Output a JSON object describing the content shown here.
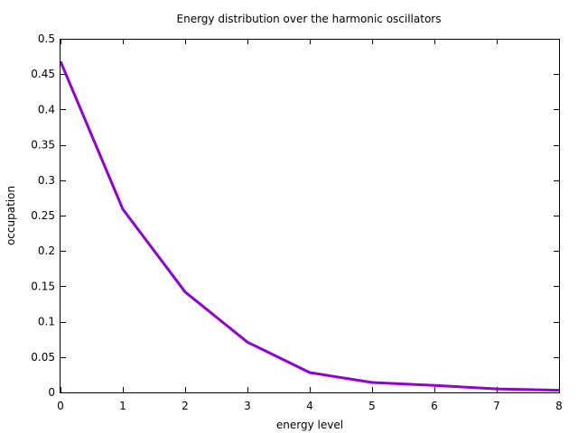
{
  "chart_data": {
    "type": "line",
    "title": "Energy distribution over the harmonic oscillators",
    "xlabel": "energy level",
    "ylabel": "occupation",
    "xlim": [
      0,
      8
    ],
    "ylim": [
      0,
      0.5
    ],
    "x_ticks": [
      0,
      1,
      2,
      3,
      4,
      5,
      6,
      7,
      8
    ],
    "x_tick_labels": [
      "0",
      "1",
      "2",
      "3",
      "4",
      "5",
      "6",
      "7",
      "8"
    ],
    "y_ticks": [
      0,
      0.05,
      0.1,
      0.15,
      0.2,
      0.25,
      0.3,
      0.35,
      0.4,
      0.45,
      0.5
    ],
    "y_tick_labels": [
      "0",
      "0.05",
      "0.1",
      "0.15",
      "0.2",
      "0.25",
      "0.3",
      "0.35",
      "0.4",
      "0.45",
      "0.5"
    ],
    "grid": false,
    "legend": "none",
    "series": [
      {
        "color": "#9400d3",
        "x": [
          0,
          1,
          2,
          3,
          4,
          5,
          6,
          7,
          8
        ],
        "y": [
          0.468,
          0.259,
          0.142,
          0.071,
          0.028,
          0.014,
          0.01,
          0.005,
          0.003
        ]
      }
    ]
  }
}
